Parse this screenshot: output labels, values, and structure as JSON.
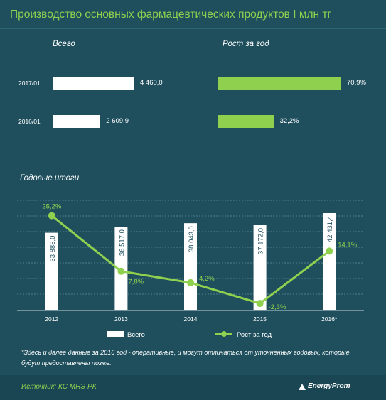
{
  "header": {
    "title": "Производство основных фармацевтических продуктов I млн тг"
  },
  "summary": {
    "total_title": "Всего",
    "growth_title": "Рост за год",
    "rows": [
      {
        "period": "2017/01",
        "total": 4460.0,
        "total_label": "4 460,0",
        "growth": 70.9,
        "growth_label": "70,9%"
      },
      {
        "period": "2016/01",
        "total": 2609.9,
        "total_label": "2 609,9",
        "growth": 32.2,
        "growth_label": "32,2%"
      }
    ],
    "colors": {
      "total": "#ffffff",
      "growth": "#8fd14f"
    }
  },
  "annual": {
    "title": "Годовые итоги"
  },
  "chart_data": {
    "type": "bar",
    "categories": [
      "2012",
      "2013",
      "2014",
      "2015",
      "2016*"
    ],
    "series": [
      {
        "name": "Всего",
        "type": "bar",
        "values": [
          33885.0,
          36517.0,
          38043.0,
          37172.0,
          42431.4
        ],
        "labels": [
          "33 885,0",
          "36 517,0",
          "38 043,0",
          "37 172,0",
          "42 431,4"
        ],
        "color": "#ffffff"
      },
      {
        "name": "Рост за год",
        "type": "line",
        "values": [
          25.2,
          7.8,
          4.2,
          -2.3,
          14.1
        ],
        "labels": [
          "25,2%",
          "7,8%",
          "4,2%",
          "-2,3%",
          "14,1%"
        ],
        "color": "#8fd14f"
      }
    ],
    "ylim_bar": [
      0,
      48000
    ],
    "ylim_line": [
      -4.5,
      30
    ],
    "grid": true,
    "legend": "bottom"
  },
  "footnote": "*Здесь и далее данные за 2016 год - оперативные, и могут отличаться от уточненных годовых, которые будут предоставлены позже.",
  "source": "Источник: КС МНЭ РК",
  "brand": "EnergyProm"
}
